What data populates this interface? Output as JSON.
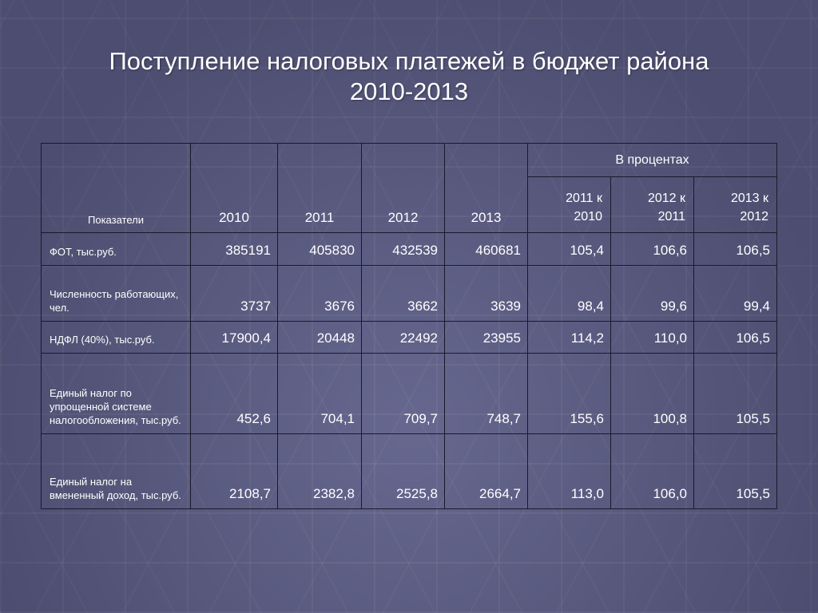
{
  "title": {
    "line1": "Поступление налоговых платежей в бюджет района",
    "line2": "2010-2013"
  },
  "table": {
    "header": {
      "indicator": "Показатели",
      "years": [
        "2010",
        "2011",
        "2012",
        "2013"
      ],
      "percent_group": "В процентах",
      "percent_cols": [
        {
          "line1": "2011 к",
          "line2": "2010"
        },
        {
          "line1": "2012 к",
          "line2": "2011"
        },
        {
          "line1": "2013 к",
          "line2": "2012"
        }
      ]
    },
    "rows": [
      {
        "label": "ФОТ, тыс.руб.",
        "values": [
          "385191",
          "405830",
          "432539",
          "460681"
        ],
        "percents": [
          "105,4",
          "106,6",
          "106,5"
        ]
      },
      {
        "label": "Численность работающих, чел.",
        "values": [
          "3737",
          "3676",
          "3662",
          "3639"
        ],
        "percents": [
          "98,4",
          "99,6",
          "99,4"
        ]
      },
      {
        "label": "НДФЛ (40%), тыс.руб.",
        "values": [
          "17900,4",
          "20448",
          "22492",
          "23955"
        ],
        "percents": [
          "114,2",
          "110,0",
          "106,5"
        ]
      },
      {
        "label": "Единый налог по упрощенной системе налогообложения, тыс.руб.",
        "values": [
          "452,6",
          "704,1",
          "709,7",
          "748,7"
        ],
        "percents": [
          "155,6",
          "100,8",
          "105,5"
        ]
      },
      {
        "label": "Единый налог на вмененный доход, тыс.руб.",
        "values": [
          "2108,7",
          "2382,8",
          "2525,8",
          "2664,7"
        ],
        "percents": [
          "113,0",
          "106,0",
          "105,5"
        ]
      }
    ]
  },
  "colors": {
    "background": "#5d5e88",
    "text": "#ffffff",
    "grid": "#1a1a2a"
  }
}
